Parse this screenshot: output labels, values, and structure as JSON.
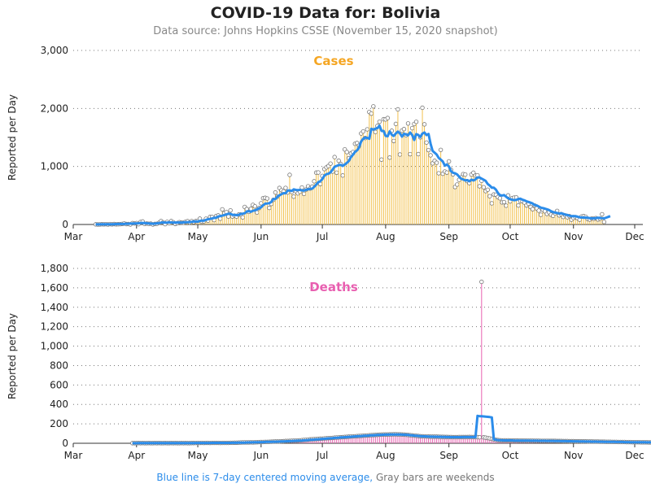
{
  "title": "COVID-19 Data for: Bolivia",
  "subtitle": "Data source: Johns Hopkins CSSE (November 15, 2020 snapshot)",
  "footnote": {
    "blue_part": "Blue line is 7-day centered moving average,",
    "gray_part": "Gray bars are weekends"
  },
  "colors": {
    "cases": "#f5a623",
    "cases_bar": "#f2c14e",
    "deaths": "#e85fb0",
    "avg_line": "#2b8cea",
    "marker": "#bbbbbb",
    "grid": "#777777"
  },
  "chart_data": [
    {
      "type": "bar",
      "panel_title": "Cases",
      "ylabel": "Reported per Day",
      "ylim": [
        0,
        3000
      ],
      "yticks": [
        0,
        1000,
        2000,
        3000
      ],
      "ytick_labels": [
        "0",
        "1,000",
        "2,000",
        "3,000"
      ],
      "x_range": [
        "2020-03-01",
        "2020-12-01"
      ],
      "x_tick_labels": [
        "Mar",
        "Apr",
        "May",
        "Jun",
        "Jul",
        "Aug",
        "Sep",
        "Oct",
        "Nov",
        "Dec"
      ],
      "daily_series_start": "2020-03-12",
      "daily_values": [
        2,
        0,
        1,
        4,
        3,
        5,
        0,
        6,
        3,
        7,
        3,
        4,
        6,
        10,
        17,
        7,
        8,
        0,
        24,
        19,
        24,
        5,
        43,
        51,
        9,
        17,
        11,
        14,
        0,
        10,
        12,
        29,
        59,
        37,
        6,
        45,
        22,
        58,
        38,
        10,
        24,
        40,
        32,
        31,
        47,
        56,
        33,
        57,
        41,
        58,
        62,
        100,
        49,
        54,
        99,
        67,
        130,
        128,
        76,
        146,
        156,
        100,
        260,
        198,
        213,
        137,
        243,
        137,
        153,
        137,
        170,
        172,
        123,
        302,
        265,
        218,
        270,
        337,
        313,
        207,
        282,
        366,
        453,
        459,
        448,
        286,
        354,
        424,
        552,
        481,
        629,
        590,
        571,
        630,
        551,
        855,
        561,
        480,
        573,
        537,
        565,
        637,
        528,
        602,
        658,
        620,
        652,
        745,
        894,
        896,
        697,
        837,
        955,
        983,
        1008,
        1049,
        911,
        1162,
        893,
        1099,
        1043,
        845,
        1294,
        1248,
        1143,
        1225,
        1249,
        1391,
        1404,
        1359,
        1568,
        1603,
        1490,
        1640,
        1939,
        1911,
        2036,
        1595,
        1700,
        1771,
        1118,
        1814,
        1811,
        1835,
        1153,
        1616,
        1440,
        1733,
        1984,
        1206,
        1618,
        1644,
        1541,
        1741,
        1212,
        1660,
        1732,
        1769,
        1213,
        1503,
        2012,
        1726,
        1412,
        1282,
        1192,
        1053,
        1097,
        1064,
        883,
        1286,
        875,
        912,
        895,
        1087,
        943,
        864,
        646,
        688,
        770,
        812,
        868,
        861,
        748,
        713,
        860,
        892,
        843,
        847,
        659,
        752,
        642,
        575,
        599,
        488,
        365,
        518,
        513,
        472,
        451,
        380,
        385,
        324,
        501,
        399,
        455,
        464,
        465,
        328,
        402,
        401,
        377,
        329,
        358,
        301,
        264,
        327,
        276,
        239,
        167,
        253,
        227,
        182,
        211,
        169,
        149,
        193,
        234,
        157,
        179,
        130,
        157,
        125,
        145,
        82,
        112,
        126,
        109,
        82,
        138,
        144,
        132,
        93,
        84,
        104,
        99,
        110,
        86,
        100,
        176,
        44
      ],
      "moving_average_7day": [
        2,
        2,
        2,
        3,
        3,
        3,
        4,
        4,
        4,
        5,
        7,
        8,
        8,
        9,
        10,
        12,
        13,
        15,
        15,
        18,
        20,
        21,
        24,
        26,
        24,
        21,
        18,
        15,
        12,
        15,
        20,
        24,
        31,
        35,
        32,
        33,
        36,
        34,
        34,
        33,
        33,
        35,
        32,
        36,
        39,
        39,
        42,
        44,
        52,
        51,
        51,
        61,
        67,
        65,
        78,
        91,
        96,
        104,
        114,
        115,
        137,
        146,
        153,
        161,
        174,
        185,
        183,
        167,
        166,
        161,
        164,
        181,
        187,
        193,
        224,
        230,
        218,
        235,
        244,
        259,
        279,
        295,
        331,
        359,
        361,
        367,
        389,
        437,
        438,
        479,
        502,
        523,
        540,
        539,
        583,
        588,
        578,
        606,
        596,
        591,
        597,
        586,
        584,
        597,
        604,
        616,
        616,
        649,
        685,
        729,
        745,
        782,
        841,
        867,
        875,
        899,
        945,
        996,
        1009,
        1023,
        1027,
        1010,
        1033,
        1061,
        1095,
        1159,
        1201,
        1250,
        1279,
        1326,
        1431,
        1476,
        1497,
        1493,
        1478,
        1649,
        1634,
        1652,
        1661,
        1703,
        1612,
        1612,
        1526,
        1521,
        1605,
        1548,
        1525,
        1568,
        1601,
        1569,
        1514,
        1565,
        1550,
        1537,
        1585,
        1544,
        1457,
        1557,
        1544,
        1508,
        1567,
        1585,
        1541,
        1560,
        1394,
        1268,
        1238,
        1206,
        1148,
        1117,
        1087,
        1014,
        1034,
        1000,
        920,
        891,
        882,
        864,
        825,
        788,
        777,
        760,
        764,
        743,
        773,
        759,
        777,
        810,
        811,
        790,
        773,
        751,
        698,
        670,
        634,
        633,
        602,
        544,
        504,
        499,
        508,
        479,
        452,
        436,
        425,
        419,
        423,
        440,
        445,
        427,
        417,
        399,
        389,
        376,
        361,
        334,
        328,
        310,
        290,
        283,
        274,
        262,
        249,
        228,
        214,
        204,
        198,
        189,
        193,
        184,
        168,
        164,
        152,
        145,
        146,
        142,
        135,
        123,
        120,
        118,
        119,
        116,
        109,
        105,
        107,
        110,
        116,
        112,
        108,
        105,
        118,
        131,
        144
      ]
    },
    {
      "type": "bar",
      "panel_title": "Deaths",
      "ylabel": "Reported per Day",
      "ylim": [
        0,
        1800
      ],
      "yticks": [
        0,
        200,
        400,
        600,
        800,
        1000,
        1200,
        1400,
        1600,
        1800
      ],
      "ytick_labels": [
        "0",
        "200",
        "400",
        "600",
        "800",
        "1,000",
        "1,200",
        "1,400",
        "1,600",
        "1,800"
      ],
      "x_range": [
        "2020-03-01",
        "2020-12-01"
      ],
      "x_tick_labels": [
        "Mar",
        "Apr",
        "May",
        "Jun",
        "Jul",
        "Aug",
        "Sep",
        "Oct",
        "Nov",
        "Dec"
      ],
      "daily_series_start": "2020-03-30",
      "daily_values": [
        1,
        1,
        1,
        2,
        1,
        2,
        1,
        1,
        2,
        1,
        1,
        2,
        1,
        2,
        1,
        1,
        2,
        1,
        1,
        2,
        1,
        2,
        1,
        1,
        2,
        1,
        2,
        1,
        1,
        2,
        2,
        3,
        4,
        3,
        4,
        3,
        4,
        4,
        3,
        4,
        4,
        4,
        4,
        3,
        4,
        4,
        4,
        4,
        5,
        5,
        6,
        6,
        7,
        8,
        9,
        9,
        9,
        9,
        10,
        9,
        10,
        11,
        12,
        13,
        13,
        14,
        14,
        15,
        16,
        17,
        18,
        18,
        18,
        20,
        21,
        23,
        23,
        24,
        26,
        27,
        27,
        28,
        30,
        32,
        34,
        35,
        37,
        40,
        41,
        42,
        43,
        45,
        47,
        48,
        50,
        52,
        53,
        54,
        55,
        58,
        59,
        60,
        62,
        63,
        65,
        66,
        68,
        70,
        71,
        72,
        74,
        75,
        76,
        78,
        79,
        80,
        82,
        83,
        84,
        85,
        86,
        88,
        89,
        90,
        90,
        90,
        91,
        91,
        92,
        92,
        91,
        91,
        90,
        89,
        87,
        85,
        83,
        81,
        79,
        77,
        75,
        73,
        72,
        71,
        70,
        69,
        68,
        68,
        68,
        68,
        67,
        66,
        66,
        65,
        65,
        64,
        64,
        63,
        63,
        63,
        64,
        64,
        64,
        64,
        64,
        65,
        64,
        64,
        63,
        63,
        62,
        1662,
        61,
        58,
        54,
        50,
        45,
        40,
        36,
        33,
        31,
        30,
        30,
        30,
        30,
        29,
        29,
        29,
        29,
        28,
        28,
        28,
        28,
        27,
        27,
        27,
        27,
        26,
        26,
        26,
        25,
        25,
        25,
        25,
        24,
        24,
        24,
        24,
        23,
        23,
        23,
        22,
        22,
        22,
        21,
        21,
        21,
        20,
        20,
        20,
        19,
        19,
        19,
        18,
        18,
        18,
        17,
        17,
        17,
        16,
        16,
        16,
        15,
        15,
        15,
        14,
        14,
        14,
        13,
        13,
        13,
        13,
        12,
        12,
        12,
        11,
        11,
        11,
        11,
        10,
        10,
        10,
        10,
        9,
        9
      ],
      "moving_average_7day": [
        1,
        1,
        1,
        2,
        2,
        2,
        2,
        2,
        2,
        2,
        2,
        2,
        2,
        2,
        2,
        2,
        2,
        2,
        2,
        2,
        2,
        2,
        2,
        2,
        2,
        2,
        2,
        2,
        2,
        2,
        2,
        3,
        3,
        3,
        3,
        3,
        3,
        3,
        3,
        4,
        4,
        4,
        4,
        4,
        4,
        4,
        4,
        4,
        4,
        5,
        5,
        5,
        6,
        6,
        7,
        7,
        8,
        8,
        9,
        9,
        10,
        10,
        11,
        12,
        12,
        13,
        14,
        14,
        15,
        16,
        16,
        17,
        18,
        19,
        19,
        20,
        21,
        22,
        23,
        24,
        25,
        26,
        27,
        28,
        30,
        31,
        33,
        35,
        36,
        38,
        40,
        41,
        43,
        45,
        46,
        48,
        50,
        51,
        53,
        55,
        56,
        58,
        60,
        61,
        63,
        64,
        66,
        67,
        69,
        70,
        72,
        73,
        74,
        76,
        77,
        78,
        80,
        81,
        82,
        84,
        85,
        86,
        87,
        88,
        89,
        89,
        90,
        90,
        90,
        90,
        90,
        90,
        89,
        88,
        87,
        85,
        83,
        81,
        79,
        77,
        75,
        73,
        72,
        71,
        70,
        69,
        68,
        68,
        67,
        67,
        66,
        66,
        65,
        65,
        64,
        64,
        63,
        63,
        63,
        63,
        63,
        63,
        64,
        64,
        64,
        64,
        64,
        64,
        63,
        282,
        279,
        278,
        276,
        274,
        272,
        270,
        266,
        40,
        36,
        33,
        31,
        30,
        29,
        29,
        29,
        29,
        29,
        28,
        28,
        28,
        28,
        27,
        27,
        27,
        27,
        26,
        26,
        26,
        26,
        25,
        25,
        25,
        25,
        24,
        24,
        24,
        24,
        23,
        23,
        23,
        22,
        22,
        22,
        21,
        21,
        21,
        20,
        20,
        20,
        19,
        19,
        19,
        18,
        18,
        18,
        17,
        17,
        17,
        16,
        16,
        16,
        15,
        15,
        15,
        14,
        14,
        14,
        13,
        13,
        13,
        13,
        12,
        12,
        12,
        11,
        11,
        11,
        11,
        10,
        10,
        10,
        10,
        9,
        9,
        9
      ]
    }
  ]
}
